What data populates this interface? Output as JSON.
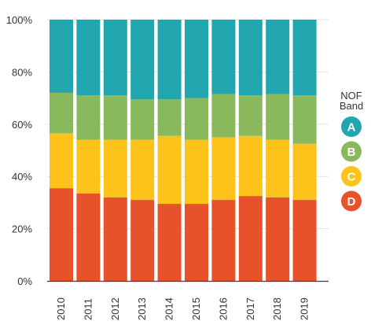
{
  "chart_data": {
    "type": "bar",
    "stacked": true,
    "categories": [
      "2010",
      "2011",
      "2012",
      "2013",
      "2014",
      "2015",
      "2016",
      "2017",
      "2018",
      "2019"
    ],
    "series": [
      {
        "name": "D",
        "color": "#e8522a",
        "values": [
          35.5,
          33.5,
          32,
          31,
          29.5,
          29.5,
          31,
          32.5,
          32,
          31
        ]
      },
      {
        "name": "C",
        "color": "#fdc31a",
        "values": [
          21,
          20.5,
          22,
          23,
          26,
          24.5,
          24,
          23,
          22,
          21.5
        ]
      },
      {
        "name": "B",
        "color": "#8ab95d",
        "values": [
          15.5,
          17,
          17,
          15.5,
          14,
          16,
          16.5,
          15.5,
          17.5,
          18.5
        ]
      },
      {
        "name": "A",
        "color": "#21a6b0",
        "values": [
          28,
          29,
          29,
          30.5,
          30.5,
          30,
          28.5,
          29,
          28.5,
          29
        ]
      }
    ],
    "yticks": [
      "0%",
      "20%",
      "40%",
      "60%",
      "80%",
      "100%"
    ],
    "ylim": [
      0,
      100
    ],
    "grid": true,
    "legend": {
      "title_line1": "NOF",
      "title_line2": "Band",
      "entries": [
        "A",
        "B",
        "C",
        "D"
      ],
      "placement": "right"
    }
  }
}
